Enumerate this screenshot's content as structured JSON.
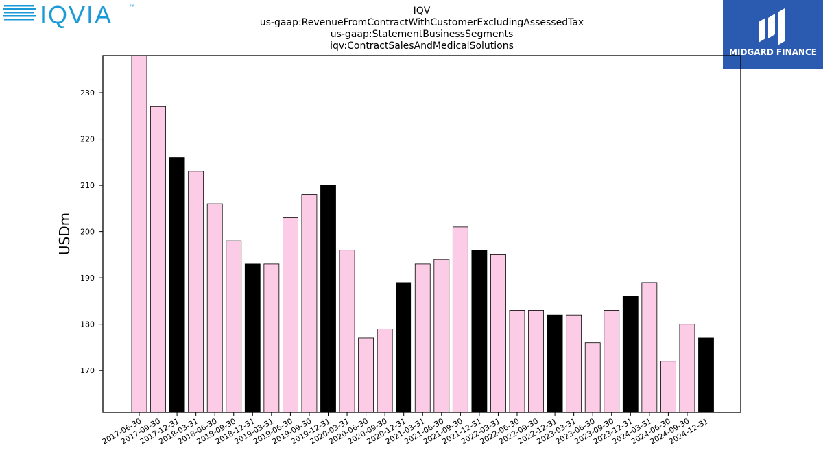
{
  "brand": {
    "left_logo_text": "IQVIA",
    "left_logo_tm": "™",
    "right_logo_text": "MIDGARD FINANCE",
    "left_logo_color": "#1a9ad6",
    "right_logo_bg": "#2b5bb0"
  },
  "chart_data": {
    "type": "bar",
    "title_lines": [
      "IQV",
      "us-gaap:RevenueFromContractWithCustomerExcludingAssessedTax",
      "us-gaap:StatementBusinessSegments",
      "iqv:ContractSalesAndMedicalSolutions"
    ],
    "ylabel": "USDm",
    "xlabel": "",
    "ylim": [
      161,
      238
    ],
    "yticks": [
      170,
      180,
      190,
      200,
      210,
      220,
      230
    ],
    "colors": {
      "regular": "#fccce6",
      "year_end": "#000000"
    },
    "categories": [
      "2017-06-30",
      "2017-09-30",
      "2017-12-31",
      "2018-03-31",
      "2018-06-30",
      "2018-09-30",
      "2018-12-31",
      "2019-03-31",
      "2019-06-30",
      "2019-09-30",
      "2019-12-31",
      "2020-03-31",
      "2020-06-30",
      "2020-09-30",
      "2020-12-31",
      "2021-03-31",
      "2021-06-30",
      "2021-09-30",
      "2021-12-31",
      "2022-03-31",
      "2022-06-30",
      "2022-09-30",
      "2022-12-31",
      "2023-03-31",
      "2023-06-30",
      "2023-09-30",
      "2023-12-31",
      "2024-03-31",
      "2024-06-30",
      "2024-09-30",
      "2024-12-31"
    ],
    "values": [
      238,
      227,
      216,
      213,
      206,
      198,
      193,
      193,
      203,
      208,
      210,
      196,
      177,
      179,
      189,
      193,
      194,
      201,
      196,
      195,
      183,
      183,
      182,
      182,
      176,
      183,
      186,
      189,
      172,
      180,
      177
    ],
    "grid": false,
    "legend": "none"
  }
}
